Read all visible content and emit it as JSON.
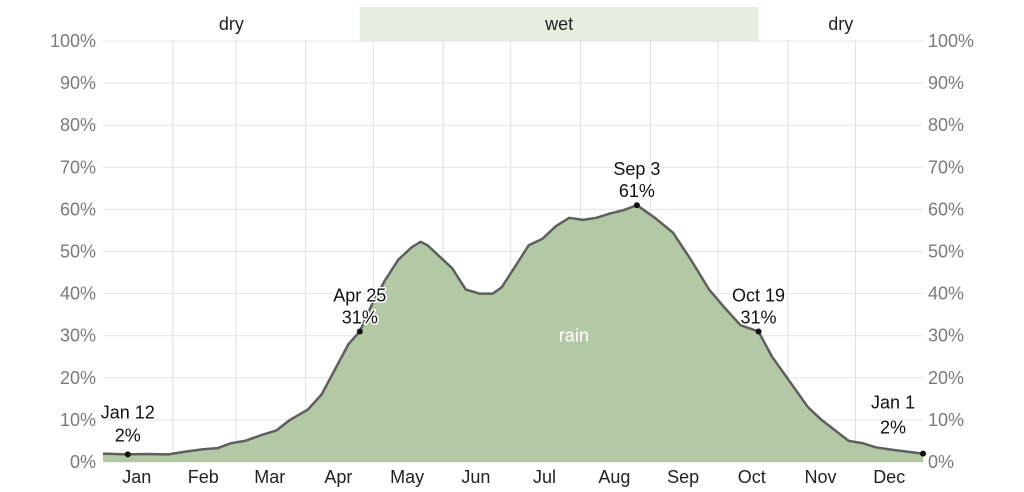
{
  "chart_data": {
    "type": "area",
    "x_unit": "day_of_year",
    "ylim": [
      0,
      100
    ],
    "y_ticks": [
      "0%",
      "10%",
      "20%",
      "30%",
      "40%",
      "50%",
      "60%",
      "70%",
      "80%",
      "90%",
      "100%"
    ],
    "months": [
      "Jan",
      "Feb",
      "Mar",
      "Apr",
      "May",
      "Jun",
      "Jul",
      "Aug",
      "Sep",
      "Oct",
      "Nov",
      "Dec"
    ],
    "seasons": [
      {
        "label": "dry",
        "start_day": 1,
        "end_day": 115,
        "highlight": false
      },
      {
        "label": "wet",
        "start_day": 115,
        "end_day": 292,
        "highlight": true
      },
      {
        "label": "dry",
        "start_day": 292,
        "end_day": 365,
        "highlight": false
      }
    ],
    "series": [
      {
        "name": "rain",
        "color": "#b3c9a5",
        "line_color": "#5f5f5f",
        "points": [
          [
            1,
            2
          ],
          [
            12,
            1.8
          ],
          [
            20,
            1.9
          ],
          [
            30,
            1.8
          ],
          [
            38,
            2.5
          ],
          [
            45,
            3
          ],
          [
            52,
            3.3
          ],
          [
            58,
            4.5
          ],
          [
            64,
            5
          ],
          [
            72,
            6.5
          ],
          [
            78,
            7.5
          ],
          [
            84,
            10
          ],
          [
            92,
            12.5
          ],
          [
            98,
            16
          ],
          [
            104,
            22
          ],
          [
            110,
            28
          ],
          [
            115,
            31
          ],
          [
            120,
            37
          ],
          [
            126,
            43
          ],
          [
            132,
            48
          ],
          [
            138,
            51
          ],
          [
            142,
            52.3
          ],
          [
            145,
            51.5
          ],
          [
            150,
            49
          ],
          [
            156,
            46
          ],
          [
            162,
            41
          ],
          [
            168,
            40
          ],
          [
            174,
            40
          ],
          [
            178,
            41.5
          ],
          [
            184,
            46.5
          ],
          [
            190,
            51.5
          ],
          [
            196,
            53
          ],
          [
            202,
            56
          ],
          [
            208,
            58
          ],
          [
            214,
            57.5
          ],
          [
            220,
            58
          ],
          [
            226,
            59
          ],
          [
            232,
            59.8
          ],
          [
            238,
            61
          ],
          [
            246,
            58
          ],
          [
            254,
            54.5
          ],
          [
            262,
            48
          ],
          [
            270,
            41
          ],
          [
            278,
            36
          ],
          [
            284,
            32.5
          ],
          [
            292,
            31
          ],
          [
            298,
            25
          ],
          [
            306,
            19
          ],
          [
            314,
            13
          ],
          [
            320,
            10
          ],
          [
            326,
            7.5
          ],
          [
            332,
            5
          ],
          [
            338,
            4.5
          ],
          [
            344,
            3.5
          ],
          [
            350,
            3
          ],
          [
            356,
            2.6
          ],
          [
            365,
            2
          ]
        ]
      }
    ],
    "annotations": [
      {
        "date": "Jan 12",
        "value": "2%",
        "day": 12,
        "y": 1.8,
        "align": "below"
      },
      {
        "date": "Apr 25",
        "value": "31%",
        "day": 115,
        "y": 31,
        "align": "above"
      },
      {
        "date": "Sep 3",
        "value": "61%",
        "day": 238,
        "y": 61,
        "align": "above"
      },
      {
        "date": "Oct 19",
        "value": "31%",
        "day": 292,
        "y": 31,
        "align": "above"
      },
      {
        "date": "Jan 1",
        "value": "2%",
        "day": 365,
        "y": 2,
        "align": "left"
      }
    ]
  }
}
